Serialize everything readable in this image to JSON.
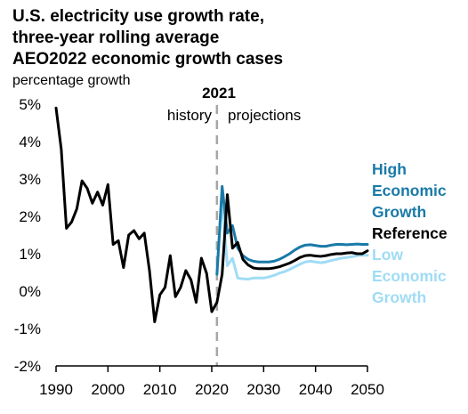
{
  "title": {
    "line1": "U.S. electricity use growth rate,",
    "line2": "three-year rolling average",
    "line3": "AEO2022 economic growth cases"
  },
  "unit_label": "percentage growth",
  "annotations": {
    "year": "2021",
    "history": "history",
    "projections": "projections"
  },
  "colors": {
    "high": "#1a7aa8",
    "reference": "#000000",
    "low": "#9fdcf5",
    "divider": "#a6a6a6",
    "axis": "#000000"
  },
  "chart_data": {
    "type": "line",
    "title": "U.S. electricity use growth rate, three-year rolling average AEO2022 economic growth cases",
    "ylabel": "percentage growth",
    "xlim": [
      1990,
      2050
    ],
    "ylim": [
      -2,
      5
    ],
    "x_ticks": [
      1990,
      2000,
      2010,
      2020,
      2030,
      2040,
      2050
    ],
    "x_tick_labels": [
      "1990",
      "2000",
      "2010",
      "2020",
      "2030",
      "2040",
      "2050"
    ],
    "y_ticks": [
      5,
      4,
      3,
      2,
      1,
      0,
      -1,
      -2
    ],
    "y_tick_labels": [
      "5%",
      "4%",
      "3%",
      "2%",
      "1%",
      "0%",
      "-1%",
      "-2%"
    ],
    "divider_x": 2021,
    "grid": false,
    "legend": "direct labels at right end of series",
    "series": [
      {
        "name": "High Economic Growth",
        "label_lines": [
          "High",
          "Economic",
          "Growth"
        ],
        "color": "#1a7aa8",
        "points": [
          [
            2021,
            0.45
          ],
          [
            2022,
            2.8
          ],
          [
            2023,
            1.55
          ],
          [
            2024,
            1.75
          ],
          [
            2025,
            1.15
          ],
          [
            2026,
            0.95
          ],
          [
            2027,
            0.85
          ],
          [
            2028,
            0.8
          ],
          [
            2029,
            0.78
          ],
          [
            2030,
            0.78
          ],
          [
            2031,
            0.78
          ],
          [
            2032,
            0.8
          ],
          [
            2033,
            0.85
          ],
          [
            2034,
            0.92
          ],
          [
            2035,
            1.0
          ],
          [
            2036,
            1.1
          ],
          [
            2037,
            1.18
          ],
          [
            2038,
            1.23
          ],
          [
            2039,
            1.24
          ],
          [
            2040,
            1.22
          ],
          [
            2041,
            1.2
          ],
          [
            2042,
            1.2
          ],
          [
            2043,
            1.23
          ],
          [
            2044,
            1.25
          ],
          [
            2045,
            1.25
          ],
          [
            2046,
            1.24
          ],
          [
            2047,
            1.25
          ],
          [
            2048,
            1.26
          ],
          [
            2049,
            1.25
          ],
          [
            2050,
            1.25
          ]
        ]
      },
      {
        "name": "Reference",
        "label_lines": [
          "Reference"
        ],
        "color": "#000000",
        "points": [
          [
            1990,
            4.9
          ],
          [
            1991,
            3.8
          ],
          [
            1992,
            1.68
          ],
          [
            1993,
            1.85
          ],
          [
            1994,
            2.2
          ],
          [
            1995,
            2.95
          ],
          [
            1996,
            2.75
          ],
          [
            1997,
            2.35
          ],
          [
            1998,
            2.65
          ],
          [
            1999,
            2.3
          ],
          [
            2000,
            2.85
          ],
          [
            2001,
            1.25
          ],
          [
            2002,
            1.35
          ],
          [
            2003,
            0.63
          ],
          [
            2004,
            1.5
          ],
          [
            2005,
            1.62
          ],
          [
            2006,
            1.4
          ],
          [
            2007,
            1.55
          ],
          [
            2008,
            0.55
          ],
          [
            2009,
            -0.82
          ],
          [
            2010,
            -0.1
          ],
          [
            2011,
            0.1
          ],
          [
            2012,
            0.95
          ],
          [
            2013,
            -0.15
          ],
          [
            2014,
            0.1
          ],
          [
            2015,
            0.55
          ],
          [
            2016,
            0.3
          ],
          [
            2017,
            -0.3
          ],
          [
            2018,
            0.88
          ],
          [
            2019,
            0.48
          ],
          [
            2020,
            -0.55
          ],
          [
            2021,
            -0.3
          ],
          [
            2022,
            0.45
          ],
          [
            2023,
            2.58
          ],
          [
            2024,
            1.15
          ],
          [
            2025,
            1.3
          ],
          [
            2026,
            0.85
          ],
          [
            2027,
            0.7
          ],
          [
            2028,
            0.62
          ],
          [
            2029,
            0.6
          ],
          [
            2030,
            0.6
          ],
          [
            2031,
            0.6
          ],
          [
            2032,
            0.62
          ],
          [
            2033,
            0.65
          ],
          [
            2034,
            0.7
          ],
          [
            2035,
            0.75
          ],
          [
            2036,
            0.82
          ],
          [
            2037,
            0.9
          ],
          [
            2038,
            0.95
          ],
          [
            2039,
            0.96
          ],
          [
            2040,
            0.94
          ],
          [
            2041,
            0.93
          ],
          [
            2042,
            0.95
          ],
          [
            2043,
            0.98
          ],
          [
            2044,
            1.0
          ],
          [
            2045,
            1.0
          ],
          [
            2046,
            1.02
          ],
          [
            2047,
            1.03
          ],
          [
            2048,
            1.0
          ],
          [
            2049,
            1.0
          ],
          [
            2050,
            1.08
          ]
        ]
      },
      {
        "name": "Low Economic Growth",
        "label_lines": [
          "Low",
          "Economic",
          "Growth"
        ],
        "color": "#9fdcf5",
        "points": [
          [
            2021,
            0.45
          ],
          [
            2022,
            2.45
          ],
          [
            2023,
            0.68
          ],
          [
            2024,
            0.88
          ],
          [
            2025,
            0.35
          ],
          [
            2026,
            0.33
          ],
          [
            2027,
            0.32
          ],
          [
            2028,
            0.35
          ],
          [
            2029,
            0.35
          ],
          [
            2030,
            0.35
          ],
          [
            2031,
            0.38
          ],
          [
            2032,
            0.42
          ],
          [
            2033,
            0.48
          ],
          [
            2034,
            0.52
          ],
          [
            2035,
            0.58
          ],
          [
            2036,
            0.65
          ],
          [
            2037,
            0.72
          ],
          [
            2038,
            0.78
          ],
          [
            2039,
            0.8
          ],
          [
            2040,
            0.78
          ],
          [
            2041,
            0.76
          ],
          [
            2042,
            0.78
          ],
          [
            2043,
            0.82
          ],
          [
            2044,
            0.85
          ],
          [
            2045,
            0.88
          ],
          [
            2046,
            0.9
          ],
          [
            2047,
            0.92
          ],
          [
            2048,
            0.95
          ],
          [
            2049,
            0.96
          ],
          [
            2050,
            0.96
          ]
        ]
      }
    ]
  }
}
